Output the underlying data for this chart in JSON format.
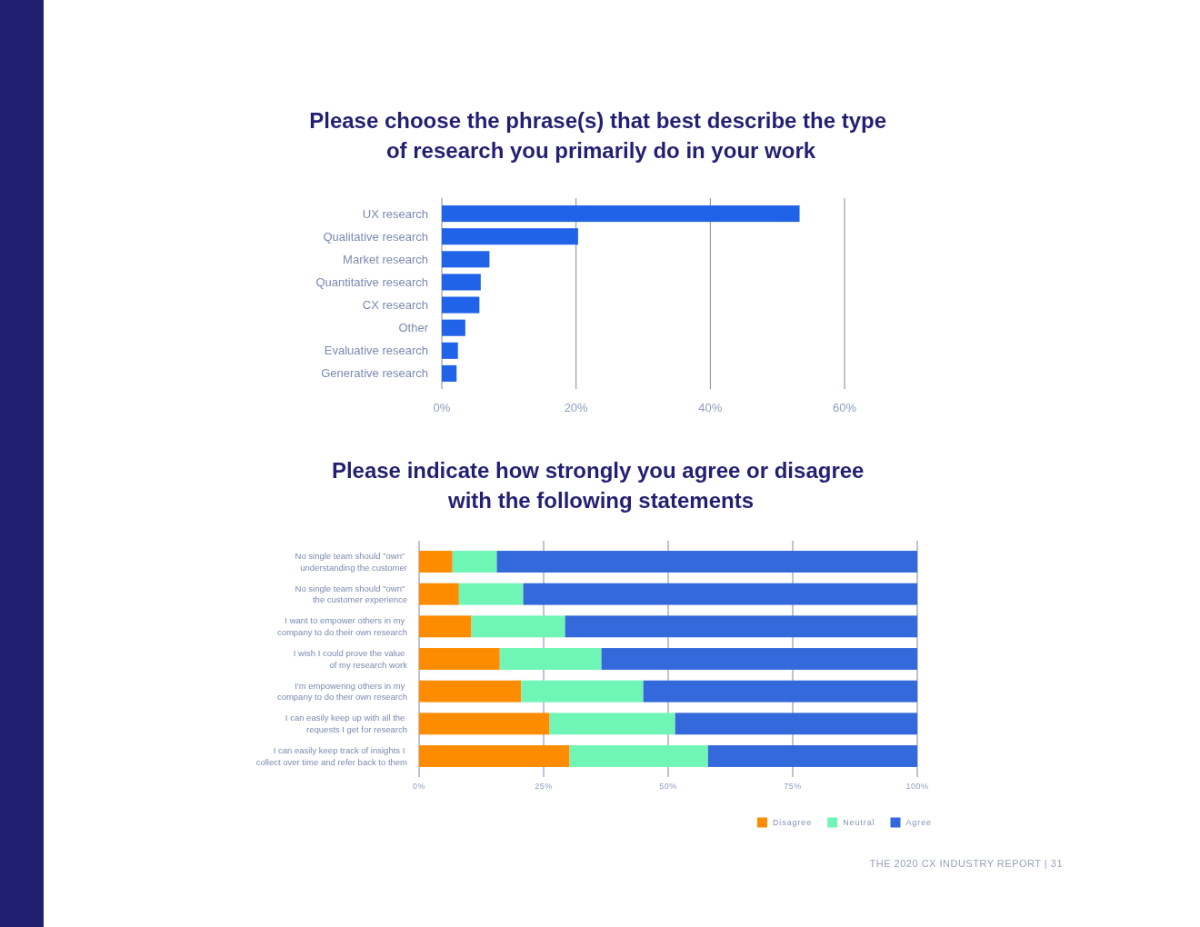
{
  "chart_data": [
    {
      "type": "bar",
      "orientation": "horizontal",
      "title": "Please choose the phrase(s) that best describe the type\nof research you primarily do in your work",
      "categories": [
        "UX research",
        "Qualitative research",
        "Market research",
        "Quantitative research",
        "CX research",
        "Other",
        "Evaluative research",
        "Generative research"
      ],
      "values": [
        53.3,
        20.3,
        7.1,
        5.8,
        5.6,
        3.5,
        2.4,
        2.2
      ],
      "color": "#2163e8",
      "xlim": [
        0,
        60
      ],
      "xticks": [
        {
          "value": 0,
          "label": "0%"
        },
        {
          "value": 20,
          "label": "20%"
        },
        {
          "value": 40,
          "label": "40%"
        },
        {
          "value": 60,
          "label": "60%"
        }
      ],
      "grid": "x"
    },
    {
      "type": "bar",
      "orientation": "horizontal",
      "stacked": true,
      "title": "Please indicate how strongly you agree or disagree\nwith the following statements",
      "categories": [
        "No single team should \"own\"\nunderstanding the customer",
        "No single team should \"own\"\nthe customer experience",
        "I want to empower others in my\ncompany to do their own research",
        "I wish I could prove the value\nof my research work",
        "I'm empowering others in my\ncompany to do their own research",
        "I can easily keep up with all the\nrequests I get for research",
        "I can easily keep track of insights I\ncollect over time and refer back to them"
      ],
      "series": [
        {
          "name": "Disagree",
          "color": "#fd8c00",
          "values": [
            6.7,
            8.0,
            10.5,
            16.2,
            20.5,
            26.2,
            30.2
          ]
        },
        {
          "name": "Neutral",
          "color": "#6ff5b5",
          "values": [
            8.9,
            12.9,
            18.8,
            20.4,
            24.5,
            25.2,
            27.8
          ]
        },
        {
          "name": "Agree",
          "color": "#3469dc",
          "values": [
            84.4,
            79.1,
            70.7,
            63.4,
            55.0,
            48.6,
            42.0
          ]
        }
      ],
      "xlim": [
        0,
        100
      ],
      "xticks": [
        {
          "value": 0,
          "label": "0%"
        },
        {
          "value": 25,
          "label": "25%"
        },
        {
          "value": 50,
          "label": "50%"
        },
        {
          "value": 75,
          "label": "75%"
        },
        {
          "value": 100,
          "label": "100%"
        }
      ],
      "grid": "x",
      "legend": "bottom right",
      "annotations": [
        "THE 2020 CX INDUSTRY REPORT | 31"
      ]
    }
  ]
}
